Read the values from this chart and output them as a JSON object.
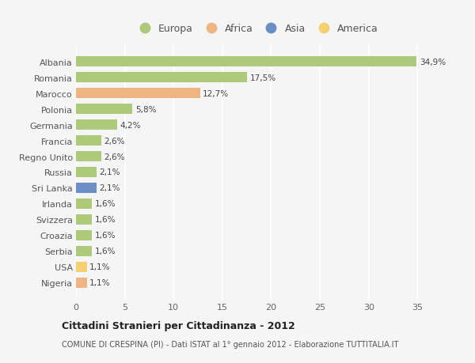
{
  "countries": [
    "Albania",
    "Romania",
    "Marocco",
    "Polonia",
    "Germania",
    "Francia",
    "Regno Unito",
    "Russia",
    "Sri Lanka",
    "Irlanda",
    "Svizzera",
    "Croazia",
    "Serbia",
    "USA",
    "Nigeria"
  ],
  "values": [
    34.9,
    17.5,
    12.7,
    5.8,
    4.2,
    2.6,
    2.6,
    2.1,
    2.1,
    1.6,
    1.6,
    1.6,
    1.6,
    1.1,
    1.1
  ],
  "labels": [
    "34,9%",
    "17,5%",
    "12,7%",
    "5,8%",
    "4,2%",
    "2,6%",
    "2,6%",
    "2,1%",
    "2,1%",
    "1,6%",
    "1,6%",
    "1,6%",
    "1,6%",
    "1,1%",
    "1,1%"
  ],
  "colors": [
    "#adc97a",
    "#adc97a",
    "#f0b482",
    "#adc97a",
    "#adc97a",
    "#adc97a",
    "#adc97a",
    "#adc97a",
    "#6b8ec4",
    "#adc97a",
    "#adc97a",
    "#adc97a",
    "#adc97a",
    "#f5d070",
    "#f0b482"
  ],
  "legend": [
    {
      "label": "Europa",
      "color": "#adc97a"
    },
    {
      "label": "Africa",
      "color": "#f0b482"
    },
    {
      "label": "Asia",
      "color": "#6b8ec4"
    },
    {
      "label": "America",
      "color": "#f5d070"
    }
  ],
  "xlim": [
    0,
    37
  ],
  "xticks": [
    0,
    5,
    10,
    15,
    20,
    25,
    30,
    35
  ],
  "title": "Cittadini Stranieri per Cittadinanza - 2012",
  "subtitle": "COMUNE DI CRESPINA (PI) - Dati ISTAT al 1° gennaio 2012 - Elaborazione TUTTITALIA.IT",
  "background_color": "#f5f5f5",
  "grid_color": "#ffffff",
  "bar_height": 0.65
}
